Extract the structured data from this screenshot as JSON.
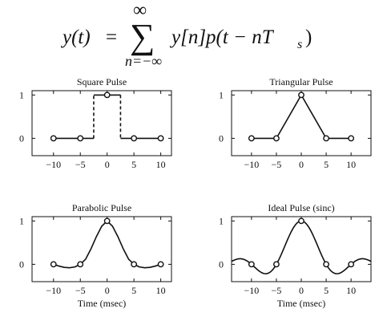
{
  "equation": {
    "lhs": "y(t)",
    "eq": "=",
    "sum_symbol": "∑",
    "upper_limit": "∞",
    "lower_limit": "n=−∞",
    "term1": "y[n]p(t − nT",
    "sub": "s",
    "close": ")"
  },
  "chart_data": [
    {
      "type": "line",
      "title": "Square Pulse",
      "xlabel": "",
      "ylabel": "",
      "xlim": [
        -14,
        12
      ],
      "ylim": [
        -0.4,
        1.1
      ],
      "xticks": [
        -10,
        -5,
        0,
        5,
        10
      ],
      "yticks": [
        0,
        1
      ],
      "sample_points": {
        "x": [
          -10,
          -5,
          0,
          5,
          10
        ],
        "y": [
          0,
          0,
          1,
          0,
          0
        ]
      },
      "curve": {
        "x": [
          -10,
          -2.5,
          -2.5,
          2.5,
          2.5,
          10
        ],
        "y": [
          0,
          0,
          1,
          1,
          0,
          0
        ]
      },
      "vertical_edges_dashed": true
    },
    {
      "type": "line",
      "title": "Triangular Pulse",
      "xlabel": "",
      "ylabel": "",
      "xlim": [
        -14,
        14
      ],
      "ylim": [
        -0.4,
        1.1
      ],
      "xticks": [
        -10,
        -5,
        0,
        5,
        10
      ],
      "yticks": [
        0,
        1
      ],
      "sample_points": {
        "x": [
          -10,
          -5,
          0,
          5,
          10
        ],
        "y": [
          0,
          0,
          1,
          0,
          0
        ]
      },
      "curve": {
        "x": [
          -10,
          -5,
          0,
          5,
          10
        ],
        "y": [
          0,
          0,
          1,
          0,
          0
        ]
      }
    },
    {
      "type": "line",
      "title": "Parabolic Pulse",
      "xlabel": "Time (msec)",
      "ylabel": "",
      "xlim": [
        -14,
        12
      ],
      "ylim": [
        -0.4,
        1.1
      ],
      "xticks": [
        -10,
        -5,
        0,
        5,
        10
      ],
      "yticks": [
        0,
        1
      ],
      "sample_points": {
        "x": [
          -10,
          -5,
          0,
          5,
          10
        ],
        "y": [
          0,
          0,
          1,
          0,
          0
        ]
      },
      "curve": {
        "x": [
          -10,
          -9,
          -8,
          -7,
          -6,
          -5,
          -4,
          -3,
          -2,
          -1,
          0,
          1,
          2,
          3,
          4,
          5,
          6,
          7,
          8,
          9,
          10
        ],
        "y": [
          0,
          -0.04,
          -0.07,
          -0.08,
          -0.06,
          0,
          0.12,
          0.36,
          0.64,
          0.88,
          1,
          0.88,
          0.64,
          0.36,
          0.12,
          0,
          -0.06,
          -0.08,
          -0.07,
          -0.04,
          0
        ]
      }
    },
    {
      "type": "line",
      "title": "Ideal Pulse  (sinc)",
      "xlabel": "Time (msec)",
      "ylabel": "",
      "xlim": [
        -14,
        14
      ],
      "ylim": [
        -0.4,
        1.1
      ],
      "xticks": [
        -10,
        -5,
        0,
        5,
        10
      ],
      "yticks": [
        0,
        1
      ],
      "sample_points": {
        "x": [
          -10,
          -5,
          0,
          5,
          10
        ],
        "y": [
          0,
          0,
          1,
          0,
          0
        ]
      },
      "curve_function": "sinc",
      "sinc_period": 5
    }
  ]
}
